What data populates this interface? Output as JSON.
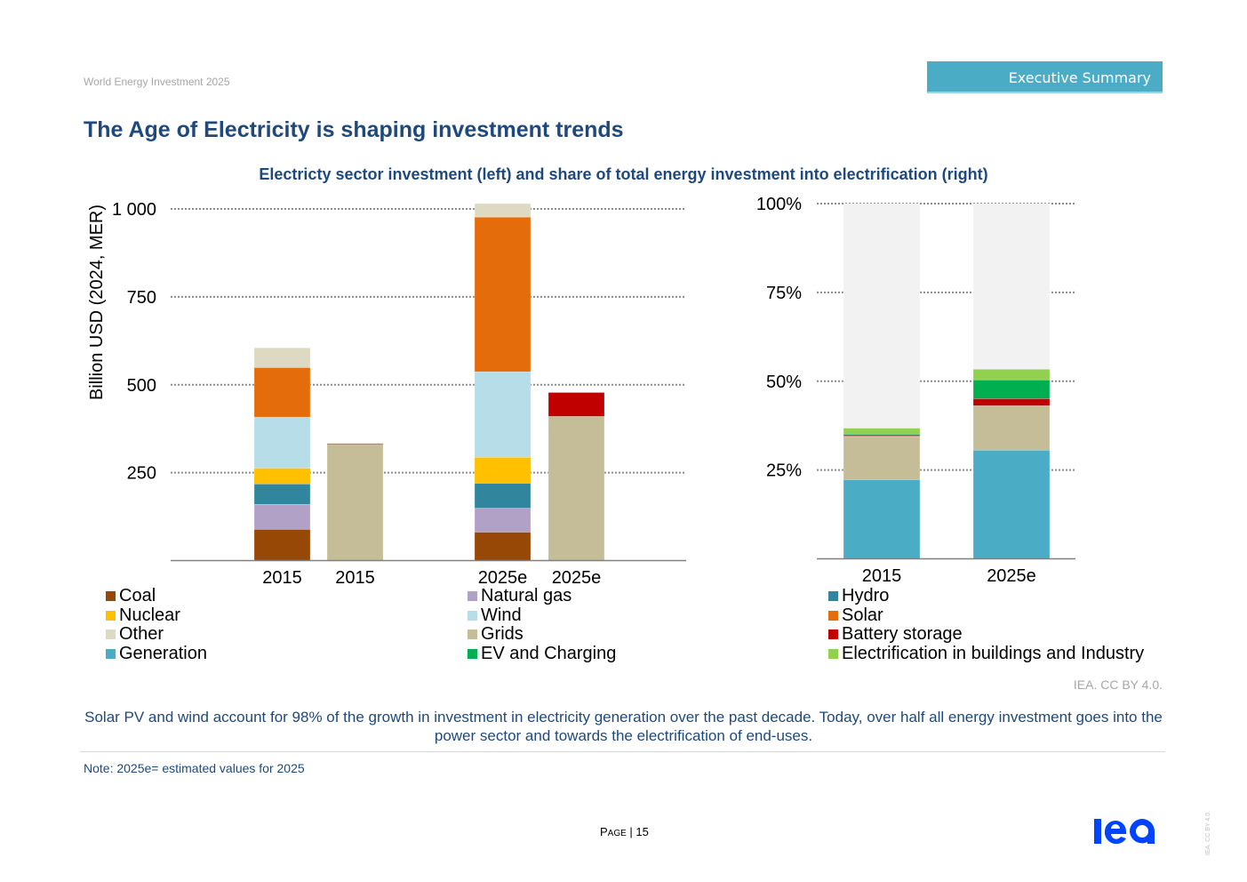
{
  "header": {
    "doc_title": "World Energy Investment 2025",
    "section_badge": "Executive Summary",
    "page_title": "The Age of Electricity is shaping investment trends"
  },
  "colors": {
    "title_blue": "#1f497d",
    "badge": "#4bacc6",
    "Coal": "#974706",
    "Natural gas": "#b2a1c7",
    "Hydro": "#31859c",
    "Nuclear": "#ffc000",
    "Wind": "#b7dde8",
    "Solar": "#e46c0a",
    "Other": "#ddd9c3",
    "Grids": "#c4bd97",
    "Battery storage": "#c00000",
    "Generation": "#4bacc6",
    "EV and Charging": "#00b050",
    "Electrification in buildings and Industry": "#92d050",
    "Remainder": "#f2f2f2",
    "iea_logo": "#0044ff"
  },
  "chart_data": [
    {
      "type": "bar",
      "stacked": true,
      "title": "Electricty sector investment (left) and share of total energy investment into electrification (right)",
      "xlabel": "",
      "ylabel": "Billion USD (2024, MER)",
      "ylim": [
        0,
        1000
      ],
      "yticks": [
        250,
        500,
        750,
        1000
      ],
      "ytick_labels": [
        "250",
        "500",
        "750",
        "1 000"
      ],
      "grid": true,
      "categories": [
        "2015",
        "2015",
        "2025e",
        "2025e"
      ],
      "series": [
        {
          "name": "Coal",
          "values": [
            89,
            0,
            81,
            0
          ]
        },
        {
          "name": "Natural gas",
          "values": [
            71,
            0,
            68,
            0
          ]
        },
        {
          "name": "Hydro",
          "values": [
            58,
            0,
            71,
            0
          ]
        },
        {
          "name": "Nuclear",
          "values": [
            45,
            0,
            74,
            0
          ]
        },
        {
          "name": "Wind",
          "values": [
            145,
            0,
            243,
            0
          ]
        },
        {
          "name": "Solar",
          "values": [
            141,
            0,
            440,
            0
          ]
        },
        {
          "name": "Other",
          "values": [
            56,
            0,
            38,
            0
          ]
        },
        {
          "name": "Grids",
          "values": [
            0,
            332,
            0,
            410
          ]
        },
        {
          "name": "Battery storage",
          "values": [
            0,
            1,
            0,
            68
          ]
        }
      ]
    },
    {
      "type": "bar",
      "stacked": true,
      "xlabel": "",
      "ylabel": "",
      "ylim": [
        0,
        100
      ],
      "yticks": [
        25,
        50,
        75,
        100
      ],
      "ytick_labels": [
        "25%",
        "50%",
        "75%",
        "100%"
      ],
      "grid": true,
      "categories": [
        "2015",
        "2025e"
      ],
      "series": [
        {
          "name": "Generation",
          "values": [
            22.3,
            30.6
          ]
        },
        {
          "name": "Grids",
          "values": [
            12.1,
            12.5
          ]
        },
        {
          "name": "Battery storage",
          "values": [
            0.2,
            2.0
          ]
        },
        {
          "name": "EV and Charging",
          "values": [
            0.5,
            5.3
          ]
        },
        {
          "name": "Electrification in buildings and Industry",
          "values": [
            1.7,
            3.0
          ]
        },
        {
          "name": "Remainder",
          "values": [
            63.2,
            46.6
          ]
        }
      ]
    }
  ],
  "legend": {
    "columns": [
      [
        "Coal",
        "Nuclear",
        "Other",
        "Generation"
      ],
      [
        "Natural gas",
        "Wind",
        "Grids",
        "EV and Charging"
      ],
      [
        "Hydro",
        "Solar",
        "Battery storage",
        "Electrification in buildings and Industry"
      ]
    ]
  },
  "footer": {
    "credit": "IEA. CC BY 4.0.",
    "caption": "Solar PV and wind account for 98% of the growth in investment in electricity generation over the past decade. Today, over half all energy investment goes into the power sector and towards the electrification of end-uses.",
    "note": "Note: 2025e= estimated values for 2025",
    "page_prefix_first": "P",
    "page_prefix_rest": "AGE",
    "page_number": "| 15",
    "logo_text": "iea",
    "vertical_license": "IEA. CC BY 4.0."
  }
}
